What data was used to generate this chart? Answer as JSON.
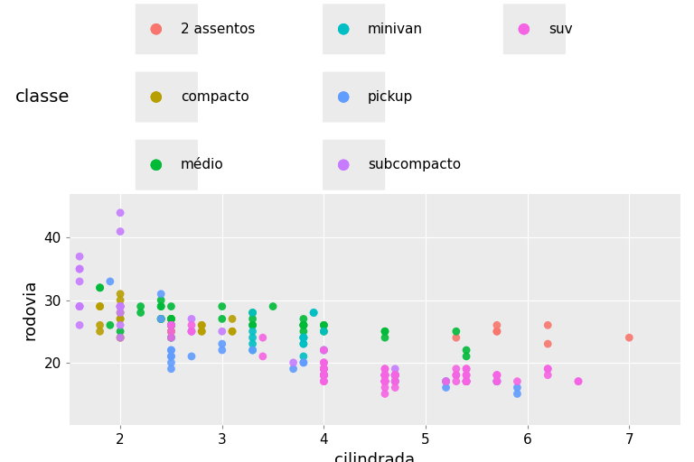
{
  "xlabel": "cilindrada",
  "ylabel": "rodovia",
  "legend_title": "classe",
  "background_color": "#EBEBEB",
  "grid_color": "#FFFFFF",
  "classes": [
    "2 assentos",
    "compacto",
    "médio",
    "minivan",
    "pickup",
    "subcompacto",
    "suv"
  ],
  "colors": {
    "2 assentos": "#F8766D",
    "compacto": "#B79F00",
    "médio": "#00BA38",
    "minivan": "#00BFC4",
    "pickup": "#619CFF",
    "subcompacto": "#C77CFF",
    "suv": "#F564E3"
  },
  "data": [
    {
      "displ": 1.8,
      "hwy": 29,
      "class": "compacto"
    },
    {
      "displ": 1.8,
      "hwy": 29,
      "class": "compacto"
    },
    {
      "displ": 2.0,
      "hwy": 31,
      "class": "compacto"
    },
    {
      "displ": 2.0,
      "hwy": 30,
      "class": "compacto"
    },
    {
      "displ": 2.8,
      "hwy": 26,
      "class": "compacto"
    },
    {
      "displ": 2.8,
      "hwy": 26,
      "class": "compacto"
    },
    {
      "displ": 3.1,
      "hwy": 27,
      "class": "compacto"
    },
    {
      "displ": 1.8,
      "hwy": 26,
      "class": "compacto"
    },
    {
      "displ": 1.8,
      "hwy": 25,
      "class": "compacto"
    },
    {
      "displ": 2.0,
      "hwy": 28,
      "class": "compacto"
    },
    {
      "displ": 2.0,
      "hwy": 27,
      "class": "compacto"
    },
    {
      "displ": 2.8,
      "hwy": 25,
      "class": "compacto"
    },
    {
      "displ": 2.8,
      "hwy": 25,
      "class": "compacto"
    },
    {
      "displ": 3.1,
      "hwy": 25,
      "class": "compacto"
    },
    {
      "displ": 3.1,
      "hwy": 25,
      "class": "compacto"
    },
    {
      "displ": 2.0,
      "hwy": 29,
      "class": "compacto"
    },
    {
      "displ": 2.0,
      "hwy": 27,
      "class": "compacto"
    },
    {
      "displ": 2.0,
      "hwy": 24,
      "class": "compacto"
    },
    {
      "displ": 2.0,
      "hwy": 24,
      "class": "compacto"
    },
    {
      "displ": 2.5,
      "hwy": 26,
      "class": "compacto"
    },
    {
      "displ": 2.5,
      "hwy": 26,
      "class": "compacto"
    },
    {
      "displ": 2.5,
      "hwy": 27,
      "class": "compacto"
    },
    {
      "displ": 2.5,
      "hwy": 27,
      "class": "compacto"
    },
    {
      "displ": 2.5,
      "hwy": 26,
      "class": "compacto"
    },
    {
      "displ": 2.5,
      "hwy": 25,
      "class": "compacto"
    },
    {
      "displ": 2.5,
      "hwy": 25,
      "class": "compacto"
    },
    {
      "displ": 1.6,
      "hwy": 33,
      "class": "subcompacto"
    },
    {
      "displ": 1.6,
      "hwy": 35,
      "class": "subcompacto"
    },
    {
      "displ": 1.6,
      "hwy": 37,
      "class": "subcompacto"
    },
    {
      "displ": 1.6,
      "hwy": 35,
      "class": "subcompacto"
    },
    {
      "displ": 1.6,
      "hwy": 29,
      "class": "subcompacto"
    },
    {
      "displ": 1.6,
      "hwy": 26,
      "class": "subcompacto"
    },
    {
      "displ": 1.6,
      "hwy": 29,
      "class": "subcompacto"
    },
    {
      "displ": 1.6,
      "hwy": 29,
      "class": "subcompacto"
    },
    {
      "displ": 2.0,
      "hwy": 24,
      "class": "subcompacto"
    },
    {
      "displ": 2.0,
      "hwy": 44,
      "class": "subcompacto"
    },
    {
      "displ": 2.0,
      "hwy": 41,
      "class": "subcompacto"
    },
    {
      "displ": 2.0,
      "hwy": 29,
      "class": "subcompacto"
    },
    {
      "displ": 2.0,
      "hwy": 26,
      "class": "subcompacto"
    },
    {
      "displ": 2.0,
      "hwy": 28,
      "class": "subcompacto"
    },
    {
      "displ": 2.0,
      "hwy": 29,
      "class": "subcompacto"
    },
    {
      "displ": 2.0,
      "hwy": 29,
      "class": "subcompacto"
    },
    {
      "displ": 2.0,
      "hwy": 29,
      "class": "subcompacto"
    },
    {
      "displ": 2.0,
      "hwy": 29,
      "class": "subcompacto"
    },
    {
      "displ": 2.7,
      "hwy": 27,
      "class": "subcompacto"
    },
    {
      "displ": 2.7,
      "hwy": 25,
      "class": "subcompacto"
    },
    {
      "displ": 2.7,
      "hwy": 25,
      "class": "subcompacto"
    },
    {
      "displ": 3.0,
      "hwy": 25,
      "class": "subcompacto"
    },
    {
      "displ": 3.7,
      "hwy": 20,
      "class": "subcompacto"
    },
    {
      "displ": 4.0,
      "hwy": 22,
      "class": "subcompacto"
    },
    {
      "displ": 4.7,
      "hwy": 19,
      "class": "subcompacto"
    },
    {
      "displ": 2.2,
      "hwy": 28,
      "class": "médio"
    },
    {
      "displ": 2.2,
      "hwy": 29,
      "class": "médio"
    },
    {
      "displ": 2.4,
      "hwy": 27,
      "class": "médio"
    },
    {
      "displ": 2.4,
      "hwy": 27,
      "class": "médio"
    },
    {
      "displ": 3.0,
      "hwy": 29,
      "class": "médio"
    },
    {
      "displ": 3.0,
      "hwy": 27,
      "class": "médio"
    },
    {
      "displ": 3.5,
      "hwy": 29,
      "class": "médio"
    },
    {
      "displ": 3.3,
      "hwy": 28,
      "class": "médio"
    },
    {
      "displ": 3.3,
      "hwy": 26,
      "class": "médio"
    },
    {
      "displ": 3.3,
      "hwy": 26,
      "class": "médio"
    },
    {
      "displ": 3.3,
      "hwy": 27,
      "class": "médio"
    },
    {
      "displ": 3.8,
      "hwy": 26,
      "class": "médio"
    },
    {
      "displ": 3.8,
      "hwy": 25,
      "class": "médio"
    },
    {
      "displ": 3.8,
      "hwy": 27,
      "class": "médio"
    },
    {
      "displ": 3.8,
      "hwy": 26,
      "class": "médio"
    },
    {
      "displ": 3.8,
      "hwy": 26,
      "class": "médio"
    },
    {
      "displ": 3.8,
      "hwy": 26,
      "class": "médio"
    },
    {
      "displ": 4.0,
      "hwy": 25,
      "class": "médio"
    },
    {
      "displ": 4.0,
      "hwy": 26,
      "class": "médio"
    },
    {
      "displ": 4.0,
      "hwy": 26,
      "class": "médio"
    },
    {
      "displ": 4.6,
      "hwy": 25,
      "class": "médio"
    },
    {
      "displ": 4.6,
      "hwy": 25,
      "class": "médio"
    },
    {
      "displ": 4.6,
      "hwy": 24,
      "class": "médio"
    },
    {
      "displ": 5.4,
      "hwy": 22,
      "class": "médio"
    },
    {
      "displ": 5.4,
      "hwy": 21,
      "class": "médio"
    },
    {
      "displ": 1.8,
      "hwy": 32,
      "class": "médio"
    },
    {
      "displ": 1.8,
      "hwy": 32,
      "class": "médio"
    },
    {
      "displ": 2.5,
      "hwy": 24,
      "class": "médio"
    },
    {
      "displ": 2.5,
      "hwy": 26,
      "class": "médio"
    },
    {
      "displ": 2.4,
      "hwy": 29,
      "class": "médio"
    },
    {
      "displ": 2.4,
      "hwy": 30,
      "class": "médio"
    },
    {
      "displ": 2.4,
      "hwy": 29,
      "class": "médio"
    },
    {
      "displ": 2.4,
      "hwy": 27,
      "class": "médio"
    },
    {
      "displ": 2.5,
      "hwy": 27,
      "class": "médio"
    },
    {
      "displ": 2.5,
      "hwy": 27,
      "class": "médio"
    },
    {
      "displ": 2.5,
      "hwy": 29,
      "class": "médio"
    },
    {
      "displ": 2.5,
      "hwy": 26,
      "class": "médio"
    },
    {
      "displ": 1.9,
      "hwy": 26,
      "class": "médio"
    },
    {
      "displ": 2.0,
      "hwy": 25,
      "class": "médio"
    },
    {
      "displ": 5.3,
      "hwy": 25,
      "class": "médio"
    },
    {
      "displ": 3.9,
      "hwy": 28,
      "class": "minivan"
    },
    {
      "displ": 3.9,
      "hwy": 28,
      "class": "minivan"
    },
    {
      "displ": 3.3,
      "hwy": 28,
      "class": "minivan"
    },
    {
      "displ": 3.3,
      "hwy": 25,
      "class": "minivan"
    },
    {
      "displ": 4.0,
      "hwy": 25,
      "class": "minivan"
    },
    {
      "displ": 3.8,
      "hwy": 23,
      "class": "minivan"
    },
    {
      "displ": 3.8,
      "hwy": 24,
      "class": "minivan"
    },
    {
      "displ": 3.8,
      "hwy": 24,
      "class": "minivan"
    },
    {
      "displ": 3.8,
      "hwy": 24,
      "class": "minivan"
    },
    {
      "displ": 3.8,
      "hwy": 23,
      "class": "minivan"
    },
    {
      "displ": 3.8,
      "hwy": 24,
      "class": "minivan"
    },
    {
      "displ": 3.8,
      "hwy": 21,
      "class": "minivan"
    },
    {
      "displ": 4.0,
      "hwy": 22,
      "class": "minivan"
    },
    {
      "displ": 3.3,
      "hwy": 22,
      "class": "minivan"
    },
    {
      "displ": 3.3,
      "hwy": 24,
      "class": "minivan"
    },
    {
      "displ": 3.3,
      "hwy": 23,
      "class": "minivan"
    },
    {
      "displ": 2.5,
      "hwy": 24,
      "class": "minivan"
    },
    {
      "displ": 2.5,
      "hwy": 26,
      "class": "minivan"
    },
    {
      "displ": 5.7,
      "hwy": 25,
      "class": "2 assentos"
    },
    {
      "displ": 5.7,
      "hwy": 25,
      "class": "2 assentos"
    },
    {
      "displ": 5.7,
      "hwy": 26,
      "class": "2 assentos"
    },
    {
      "displ": 6.2,
      "hwy": 23,
      "class": "2 assentos"
    },
    {
      "displ": 6.2,
      "hwy": 26,
      "class": "2 assentos"
    },
    {
      "displ": 7.0,
      "hwy": 24,
      "class": "2 assentos"
    },
    {
      "displ": 5.3,
      "hwy": 24,
      "class": "2 assentos"
    },
    {
      "displ": 2.4,
      "hwy": 31,
      "class": "pickup"
    },
    {
      "displ": 2.4,
      "hwy": 27,
      "class": "pickup"
    },
    {
      "displ": 3.0,
      "hwy": 23,
      "class": "pickup"
    },
    {
      "displ": 3.0,
      "hwy": 22,
      "class": "pickup"
    },
    {
      "displ": 3.3,
      "hwy": 22,
      "class": "pickup"
    },
    {
      "displ": 3.8,
      "hwy": 20,
      "class": "pickup"
    },
    {
      "displ": 3.8,
      "hwy": 20,
      "class": "pickup"
    },
    {
      "displ": 4.0,
      "hwy": 19,
      "class": "pickup"
    },
    {
      "displ": 4.7,
      "hwy": 18,
      "class": "pickup"
    },
    {
      "displ": 4.7,
      "hwy": 18,
      "class": "pickup"
    },
    {
      "displ": 4.7,
      "hwy": 17,
      "class": "pickup"
    },
    {
      "displ": 5.2,
      "hwy": 17,
      "class": "pickup"
    },
    {
      "displ": 5.2,
      "hwy": 16,
      "class": "pickup"
    },
    {
      "displ": 5.7,
      "hwy": 17,
      "class": "pickup"
    },
    {
      "displ": 5.9,
      "hwy": 15,
      "class": "pickup"
    },
    {
      "displ": 2.5,
      "hwy": 22,
      "class": "pickup"
    },
    {
      "displ": 2.5,
      "hwy": 21,
      "class": "pickup"
    },
    {
      "displ": 2.5,
      "hwy": 20,
      "class": "pickup"
    },
    {
      "displ": 2.5,
      "hwy": 21,
      "class": "pickup"
    },
    {
      "displ": 2.5,
      "hwy": 22,
      "class": "pickup"
    },
    {
      "displ": 2.5,
      "hwy": 19,
      "class": "pickup"
    },
    {
      "displ": 2.7,
      "hwy": 21,
      "class": "pickup"
    },
    {
      "displ": 3.7,
      "hwy": 19,
      "class": "pickup"
    },
    {
      "displ": 4.0,
      "hwy": 18,
      "class": "pickup"
    },
    {
      "displ": 4.7,
      "hwy": 18,
      "class": "pickup"
    },
    {
      "displ": 4.7,
      "hwy": 18,
      "class": "pickup"
    },
    {
      "displ": 4.7,
      "hwy": 17,
      "class": "pickup"
    },
    {
      "displ": 5.2,
      "hwy": 17,
      "class": "pickup"
    },
    {
      "displ": 5.7,
      "hwy": 17,
      "class": "pickup"
    },
    {
      "displ": 5.9,
      "hwy": 16,
      "class": "pickup"
    },
    {
      "displ": 1.9,
      "hwy": 33,
      "class": "pickup"
    },
    {
      "displ": 4.6,
      "hwy": 18,
      "class": "suv"
    },
    {
      "displ": 4.6,
      "hwy": 17,
      "class": "suv"
    },
    {
      "displ": 4.6,
      "hwy": 16,
      "class": "suv"
    },
    {
      "displ": 4.6,
      "hwy": 18,
      "class": "suv"
    },
    {
      "displ": 4.6,
      "hwy": 17,
      "class": "suv"
    },
    {
      "displ": 4.6,
      "hwy": 15,
      "class": "suv"
    },
    {
      "displ": 4.6,
      "hwy": 17,
      "class": "suv"
    },
    {
      "displ": 4.6,
      "hwy": 18,
      "class": "suv"
    },
    {
      "displ": 4.7,
      "hwy": 18,
      "class": "suv"
    },
    {
      "displ": 4.7,
      "hwy": 18,
      "class": "suv"
    },
    {
      "displ": 4.7,
      "hwy": 18,
      "class": "suv"
    },
    {
      "displ": 4.7,
      "hwy": 17,
      "class": "suv"
    },
    {
      "displ": 4.7,
      "hwy": 17,
      "class": "suv"
    },
    {
      "displ": 4.7,
      "hwy": 16,
      "class": "suv"
    },
    {
      "displ": 5.4,
      "hwy": 17,
      "class": "suv"
    },
    {
      "displ": 5.4,
      "hwy": 17,
      "class": "suv"
    },
    {
      "displ": 5.4,
      "hwy": 17,
      "class": "suv"
    },
    {
      "displ": 5.4,
      "hwy": 19,
      "class": "suv"
    },
    {
      "displ": 5.4,
      "hwy": 19,
      "class": "suv"
    },
    {
      "displ": 5.7,
      "hwy": 17,
      "class": "suv"
    },
    {
      "displ": 5.7,
      "hwy": 18,
      "class": "suv"
    },
    {
      "displ": 6.5,
      "hwy": 17,
      "class": "suv"
    },
    {
      "displ": 2.5,
      "hwy": 26,
      "class": "suv"
    },
    {
      "displ": 2.5,
      "hwy": 25,
      "class": "suv"
    },
    {
      "displ": 2.5,
      "hwy": 26,
      "class": "suv"
    },
    {
      "displ": 2.5,
      "hwy": 24,
      "class": "suv"
    },
    {
      "displ": 4.0,
      "hwy": 18,
      "class": "suv"
    },
    {
      "displ": 4.0,
      "hwy": 18,
      "class": "suv"
    },
    {
      "displ": 4.0,
      "hwy": 20,
      "class": "suv"
    },
    {
      "displ": 4.0,
      "hwy": 19,
      "class": "suv"
    },
    {
      "displ": 4.0,
      "hwy": 18,
      "class": "suv"
    },
    {
      "displ": 4.0,
      "hwy": 18,
      "class": "suv"
    },
    {
      "displ": 4.0,
      "hwy": 18,
      "class": "suv"
    },
    {
      "displ": 4.0,
      "hwy": 17,
      "class": "suv"
    },
    {
      "displ": 4.0,
      "hwy": 17,
      "class": "suv"
    },
    {
      "displ": 4.0,
      "hwy": 18,
      "class": "suv"
    },
    {
      "displ": 4.0,
      "hwy": 19,
      "class": "suv"
    },
    {
      "displ": 4.6,
      "hwy": 17,
      "class": "suv"
    },
    {
      "displ": 4.6,
      "hwy": 17,
      "class": "suv"
    },
    {
      "displ": 4.6,
      "hwy": 17,
      "class": "suv"
    },
    {
      "displ": 4.6,
      "hwy": 17,
      "class": "suv"
    },
    {
      "displ": 4.6,
      "hwy": 17,
      "class": "suv"
    },
    {
      "displ": 4.6,
      "hwy": 18,
      "class": "suv"
    },
    {
      "displ": 4.6,
      "hwy": 17,
      "class": "suv"
    },
    {
      "displ": 4.6,
      "hwy": 19,
      "class": "suv"
    },
    {
      "displ": 4.6,
      "hwy": 19,
      "class": "suv"
    },
    {
      "displ": 4.6,
      "hwy": 17,
      "class": "suv"
    },
    {
      "displ": 4.6,
      "hwy": 18,
      "class": "suv"
    },
    {
      "displ": 4.6,
      "hwy": 18,
      "class": "suv"
    },
    {
      "displ": 4.6,
      "hwy": 18,
      "class": "suv"
    },
    {
      "displ": 5.4,
      "hwy": 17,
      "class": "suv"
    },
    {
      "displ": 5.4,
      "hwy": 18,
      "class": "suv"
    },
    {
      "displ": 5.4,
      "hwy": 18,
      "class": "suv"
    },
    {
      "displ": 5.4,
      "hwy": 17,
      "class": "suv"
    },
    {
      "displ": 5.4,
      "hwy": 17,
      "class": "suv"
    },
    {
      "displ": 5.7,
      "hwy": 17,
      "class": "suv"
    },
    {
      "displ": 6.2,
      "hwy": 18,
      "class": "suv"
    },
    {
      "displ": 6.2,
      "hwy": 19,
      "class": "suv"
    },
    {
      "displ": 6.2,
      "hwy": 19,
      "class": "suv"
    },
    {
      "displ": 5.3,
      "hwy": 19,
      "class": "suv"
    },
    {
      "displ": 5.3,
      "hwy": 18,
      "class": "suv"
    },
    {
      "displ": 5.3,
      "hwy": 17,
      "class": "suv"
    },
    {
      "displ": 5.3,
      "hwy": 18,
      "class": "suv"
    },
    {
      "displ": 5.7,
      "hwy": 18,
      "class": "suv"
    },
    {
      "displ": 6.5,
      "hwy": 17,
      "class": "suv"
    },
    {
      "displ": 2.7,
      "hwy": 26,
      "class": "suv"
    },
    {
      "displ": 2.7,
      "hwy": 25,
      "class": "suv"
    },
    {
      "displ": 3.4,
      "hwy": 24,
      "class": "suv"
    },
    {
      "displ": 3.4,
      "hwy": 21,
      "class": "suv"
    },
    {
      "displ": 4.0,
      "hwy": 22,
      "class": "suv"
    },
    {
      "displ": 4.0,
      "hwy": 20,
      "class": "suv"
    },
    {
      "displ": 4.0,
      "hwy": 19,
      "class": "suv"
    },
    {
      "displ": 4.0,
      "hwy": 19,
      "class": "suv"
    },
    {
      "displ": 4.7,
      "hwy": 18,
      "class": "suv"
    },
    {
      "displ": 4.7,
      "hwy": 18,
      "class": "suv"
    },
    {
      "displ": 5.2,
      "hwy": 17,
      "class": "suv"
    },
    {
      "displ": 5.7,
      "hwy": 18,
      "class": "suv"
    },
    {
      "displ": 5.9,
      "hwy": 17,
      "class": "suv"
    }
  ],
  "xlim": [
    1.5,
    7.5
  ],
  "ylim": [
    10,
    47
  ],
  "xticks": [
    2,
    3,
    4,
    5,
    6,
    7
  ],
  "yticks": [
    20,
    30,
    40
  ],
  "figsize": [
    7.68,
    5.12
  ],
  "dpi": 100,
  "marker_size": 40,
  "legend_fontsize": 11,
  "legend_title_fontsize": 14,
  "axis_label_fontsize": 13,
  "tick_fontsize": 11,
  "legend_bg": "#EBEBEB",
  "legend_rows": [
    [
      "2 assentos",
      "minivan",
      "suv"
    ],
    [
      "compacto",
      "pickup",
      ""
    ],
    [
      "médio",
      "subcompacto",
      ""
    ]
  ]
}
